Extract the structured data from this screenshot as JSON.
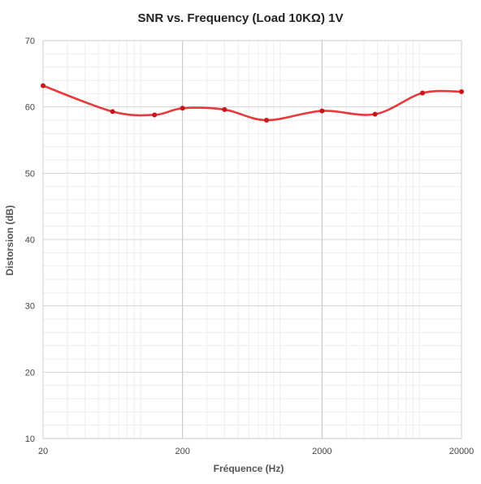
{
  "chart_data": {
    "type": "line",
    "title": "SNR vs. Frequency (Load 10KΩ) 1V",
    "xlabel": "Fréquence (Hz)",
    "ylabel": "Distorsion (dB)",
    "x_scale": "log",
    "xlim": [
      20,
      20000
    ],
    "ylim": [
      10,
      70
    ],
    "x_ticks": [
      20,
      200,
      2000,
      20000
    ],
    "x_tick_labels": [
      "20",
      "200",
      "2000",
      "20000"
    ],
    "y_ticks": [
      10,
      20,
      30,
      40,
      50,
      60,
      70
    ],
    "y_tick_labels": [
      "10",
      "20",
      "30",
      "40",
      "50",
      "60",
      "70"
    ],
    "grid": true,
    "legend": "none",
    "smooth": true,
    "series": [
      {
        "color": "#e8393c",
        "marker_color": "#c8151b",
        "x": [
          20,
          63,
          126,
          200,
          400,
          800,
          2000,
          4800,
          10500,
          20000
        ],
        "y": [
          63.2,
          59.3,
          58.8,
          59.8,
          59.6,
          58.0,
          59.4,
          58.9,
          62.1,
          62.3
        ]
      }
    ]
  }
}
